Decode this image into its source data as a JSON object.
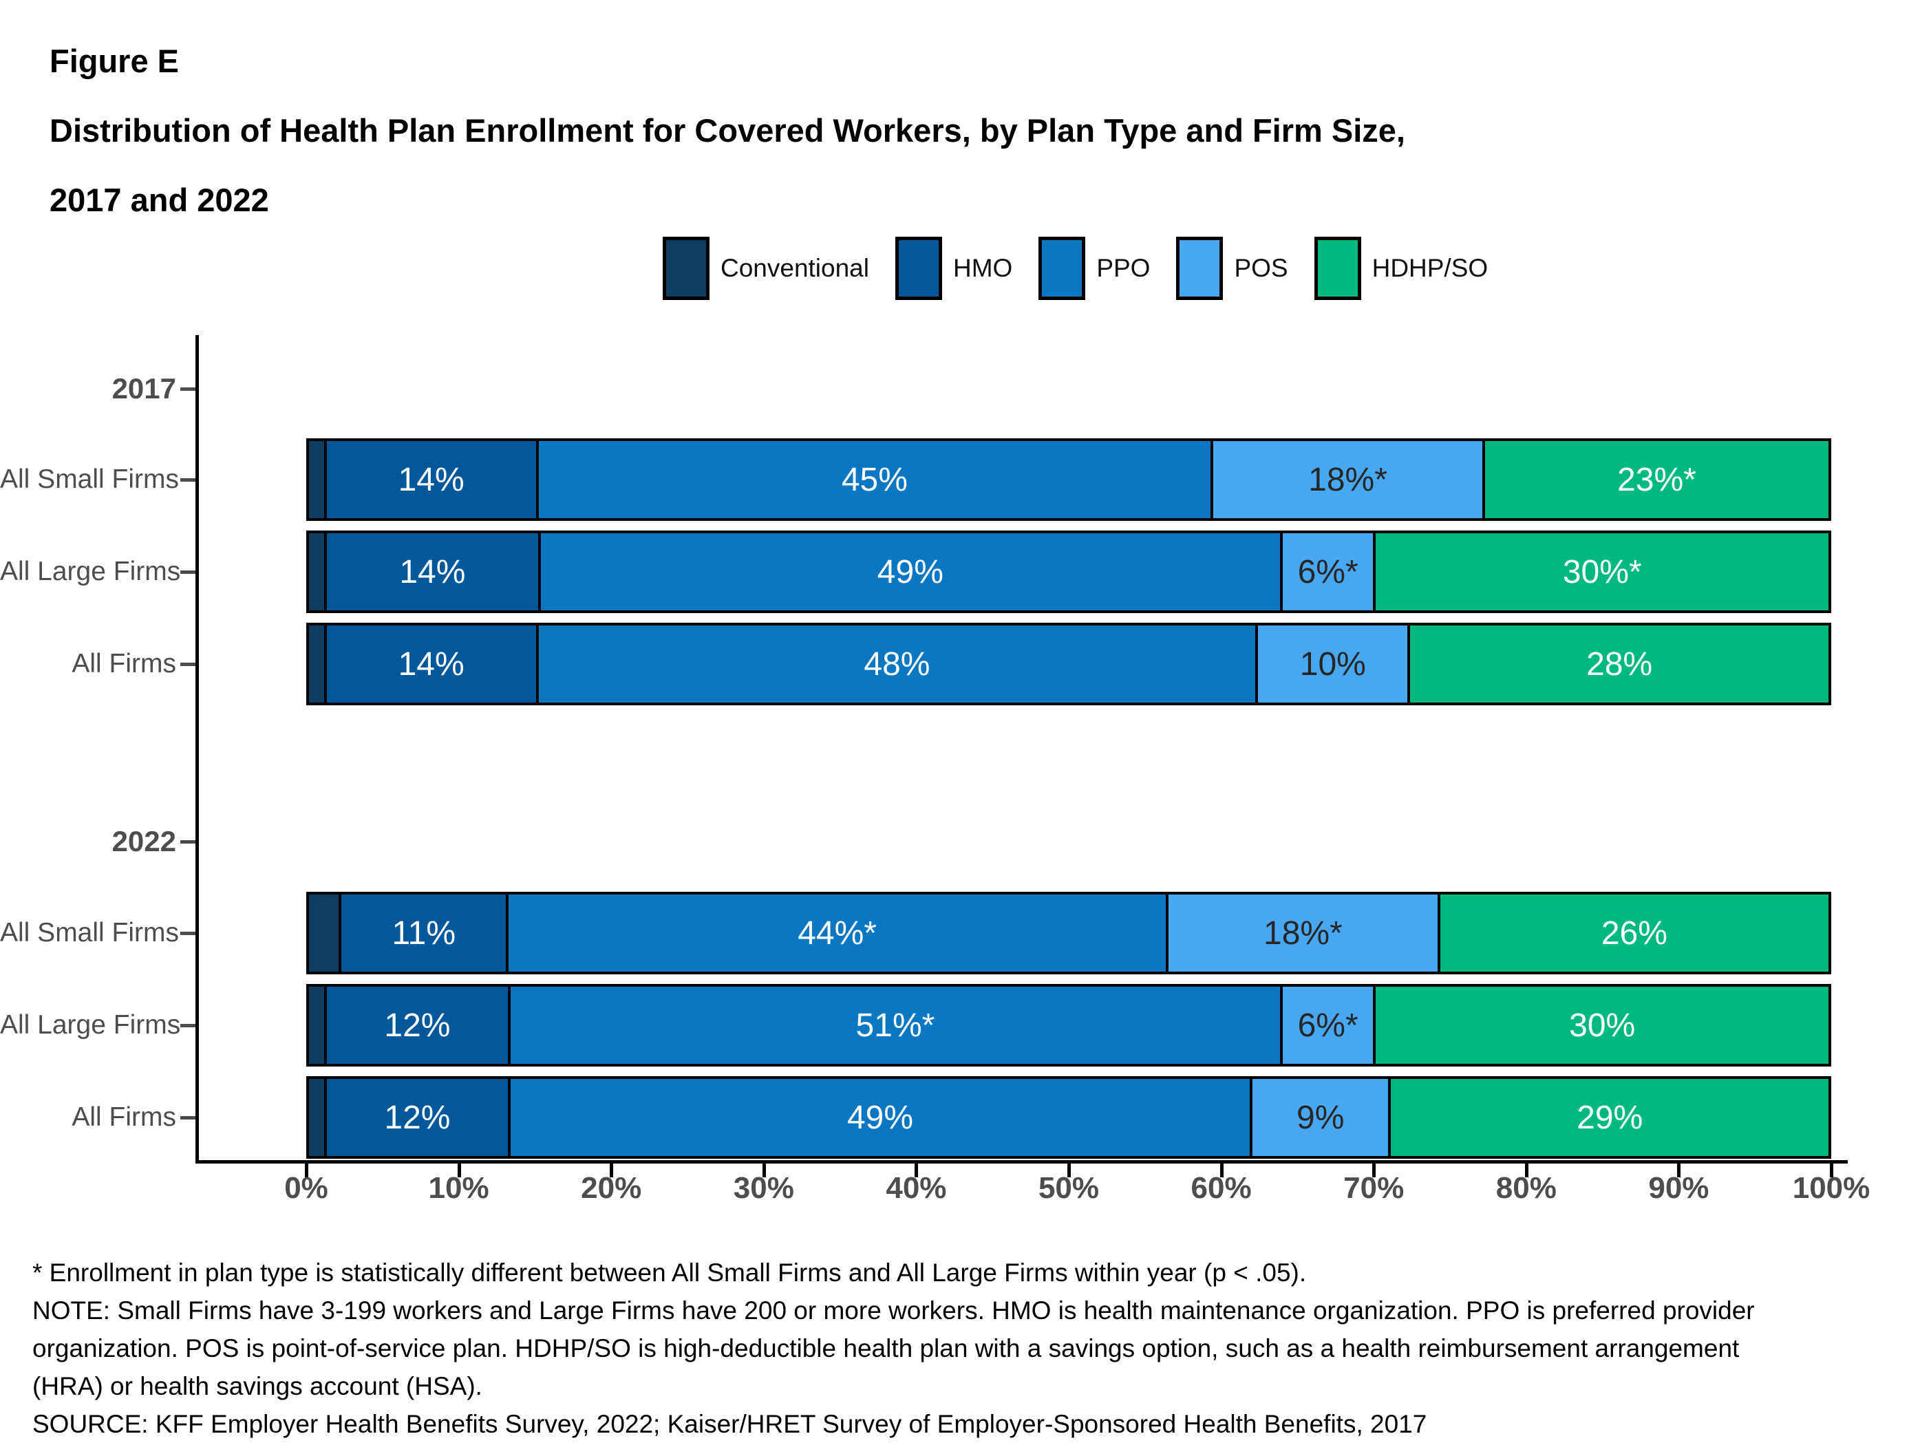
{
  "title": {
    "line1": "Figure E",
    "line2": "Distribution of Health Plan Enrollment for Covered Workers, by Plan Type and Firm Size,",
    "line3": "2017 and 2022"
  },
  "legend": {
    "items": [
      {
        "label": "Conventional",
        "color": "#0E3D61"
      },
      {
        "label": "HMO",
        "color": "#03589B"
      },
      {
        "label": "PPO",
        "color": "#0B77C2"
      },
      {
        "label": "POS",
        "color": "#47A8F1"
      },
      {
        "label": "HDHP/SO",
        "color": "#00B97E"
      }
    ]
  },
  "colors": {
    "plan_fills": [
      "#0E3D61",
      "#03589B",
      "#0B77C2",
      "#47A8F1",
      "#00B97E"
    ],
    "label_default": "#ffffff",
    "label_on_pos": "#262626",
    "axis": "#000000",
    "tick_label": "#4d4d4d"
  },
  "axis": {
    "x_ticks": [
      "0%",
      "10%",
      "20%",
      "30%",
      "40%",
      "50%",
      "60%",
      "70%",
      "80%",
      "90%",
      "100%"
    ]
  },
  "chart_data": {
    "type": "bar",
    "orientation": "horizontal",
    "stacked": true,
    "title": "Distribution of Health Plan Enrollment for Covered Workers, by Plan Type and Firm Size, 2017 and 2022",
    "xlabel": "",
    "ylabel": "",
    "xlim": [
      0,
      100
    ],
    "grid": false,
    "legend_position": "top",
    "plan_types": [
      "Conventional",
      "HMO",
      "PPO",
      "POS",
      "HDHP/SO"
    ],
    "groups": [
      {
        "year": "2017",
        "rows": [
          {
            "category": "All Small Firms",
            "values": [
              1,
              14,
              45,
              18,
              23
            ],
            "labels": [
              "",
              "14%",
              "45%",
              "18%*",
              "23%*"
            ]
          },
          {
            "category": "All Large Firms",
            "values": [
              1,
              14,
              49,
              6,
              30
            ],
            "labels": [
              "",
              "14%",
              "49%",
              "6%*",
              "30%*"
            ]
          },
          {
            "category": "All Firms",
            "values": [
              1,
              14,
              48,
              10,
              28
            ],
            "labels": [
              "",
              "14%",
              "48%",
              "10%",
              "28%"
            ]
          }
        ]
      },
      {
        "year": "2022",
        "rows": [
          {
            "category": "All Small Firms",
            "values": [
              2,
              11,
              44,
              18,
              26
            ],
            "labels": [
              "",
              "11%",
              "44%*",
              "18%*",
              "26%"
            ]
          },
          {
            "category": "All Large Firms",
            "values": [
              1,
              12,
              51,
              6,
              30
            ],
            "labels": [
              "",
              "12%",
              "51%*",
              "6%*",
              "30%"
            ]
          },
          {
            "category": "All Firms",
            "values": [
              1,
              12,
              49,
              9,
              29
            ],
            "labels": [
              "",
              "12%",
              "49%",
              "9%",
              "29%"
            ]
          }
        ]
      }
    ]
  },
  "footnotes": {
    "line1": "* Enrollment in plan type is statistically different between All Small Firms and All Large Firms within year (p < .05).",
    "line2": "NOTE: Small Firms have 3-199 workers and Large Firms have 200 or more workers. HMO is health maintenance organization. PPO is preferred provider",
    "line3": "organization. POS is point-of-service plan. HDHP/SO is high-deductible health plan with a savings option, such as a health reimbursement arrangement",
    "line4": "(HRA) or health savings account (HSA).",
    "line5": "SOURCE: KFF Employer Health Benefits Survey, 2022; Kaiser/HRET Survey of Employer-Sponsored Health Benefits, 2017"
  }
}
